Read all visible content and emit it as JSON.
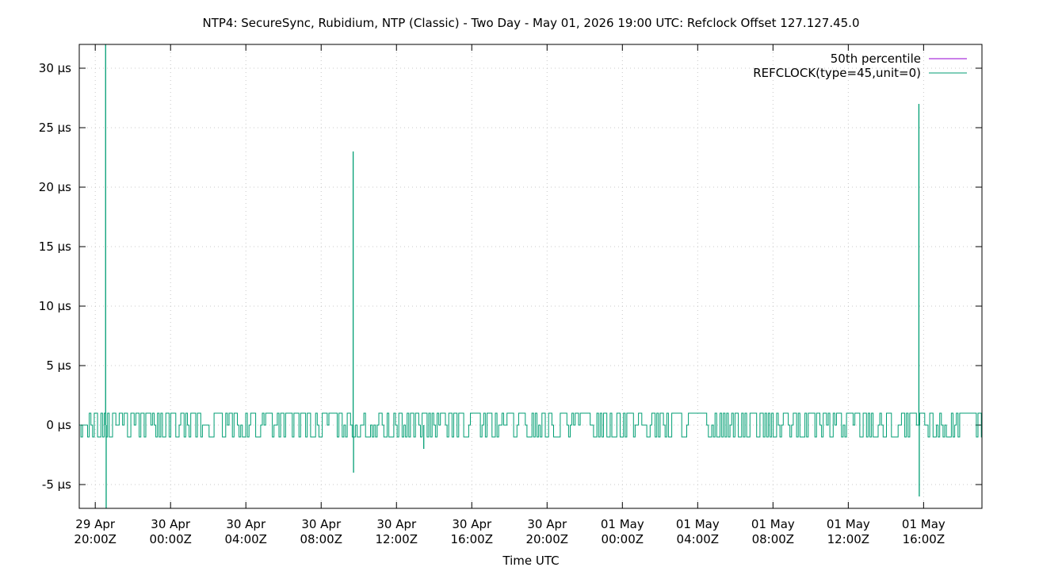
{
  "chart_data": {
    "type": "line",
    "title": "NTP4: SecureSync, Rubidium, NTP (Classic) - Two Day - May 01, 2026 19:00 UTC: Refclock Offset 127.127.45.0",
    "xlabel": "Time UTC",
    "ylabel": "",
    "x_range_hours_from_29apr_2000": [
      -0.85,
      47.1
    ],
    "ylim": [
      -7,
      32
    ],
    "y_ticks": [
      {
        "value": 30,
        "label": "30 µs"
      },
      {
        "value": 25,
        "label": "25 µs"
      },
      {
        "value": 20,
        "label": "20 µs"
      },
      {
        "value": 15,
        "label": "15 µs"
      },
      {
        "value": 10,
        "label": "10 µs"
      },
      {
        "value": 5,
        "label": "5 µs"
      },
      {
        "value": 0,
        "label": "0 µs"
      },
      {
        "value": -5,
        "label": "-5 µs"
      }
    ],
    "x_ticks": [
      {
        "hour": 0,
        "line1": "29 Apr",
        "line2": "20:00Z"
      },
      {
        "hour": 4,
        "line1": "30 Apr",
        "line2": "00:00Z"
      },
      {
        "hour": 8,
        "line1": "30 Apr",
        "line2": "04:00Z"
      },
      {
        "hour": 12,
        "line1": "30 Apr",
        "line2": "08:00Z"
      },
      {
        "hour": 16,
        "line1": "30 Apr",
        "line2": "12:00Z"
      },
      {
        "hour": 20,
        "line1": "30 Apr",
        "line2": "16:00Z"
      },
      {
        "hour": 24,
        "line1": "30 Apr",
        "line2": "20:00Z"
      },
      {
        "hour": 28,
        "line1": "01 May",
        "line2": "00:00Z"
      },
      {
        "hour": 32,
        "line1": "01 May",
        "line2": "04:00Z"
      },
      {
        "hour": 36,
        "line1": "01 May",
        "line2": "08:00Z"
      },
      {
        "hour": 40,
        "line1": "01 May",
        "line2": "12:00Z"
      },
      {
        "hour": 44,
        "line1": "01 May",
        "line2": "16:00Z"
      }
    ],
    "grid": true,
    "legend_position": "top-right",
    "series": [
      {
        "name": "50th percentile",
        "color": "#9400d3",
        "points": []
      },
      {
        "name": "REFCLOCK(type=45,unit=0)",
        "color": "#009e73",
        "noise_band": {
          "x_start": -0.85,
          "x_end": 47.1,
          "values": [
            -1,
            0,
            1
          ]
        },
        "spikes": [
          {
            "x": 0.55,
            "y": 32
          },
          {
            "x": 0.58,
            "y": -7
          },
          {
            "x": 13.7,
            "y": 23
          },
          {
            "x": 13.72,
            "y": -4
          },
          {
            "x": 17.45,
            "y": -2
          },
          {
            "x": 43.75,
            "y": 27
          },
          {
            "x": 43.77,
            "y": -6
          }
        ]
      }
    ]
  }
}
